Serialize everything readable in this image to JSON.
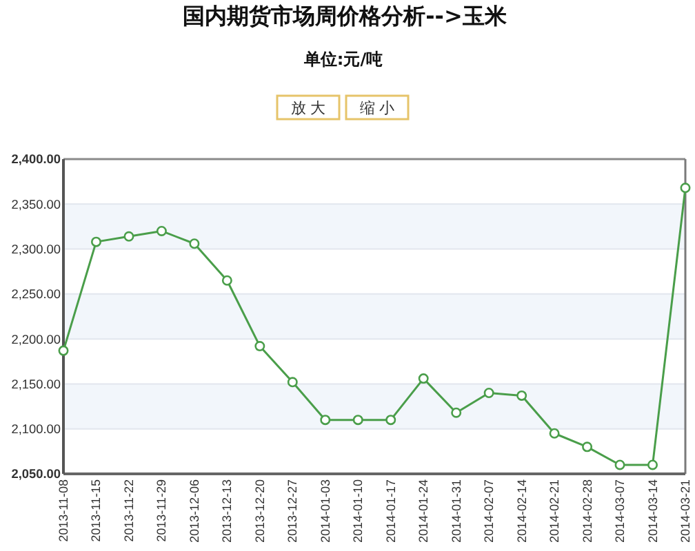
{
  "chart_data": {
    "type": "line",
    "title": "国内期货市场周价格分析-->玉米",
    "subtitle": "单位:元/吨",
    "annotations": [
      "放 大",
      "缩 小"
    ],
    "categories": [
      "2013-11-08",
      "2013-11-15",
      "2013-11-22",
      "2013-11-29",
      "2013-12-06",
      "2013-12-13",
      "2013-12-20",
      "2013-12-27",
      "2014-01-03",
      "2014-01-10",
      "2014-01-17",
      "2014-01-24",
      "2014-01-31",
      "2014-02-07",
      "2014-02-14",
      "2014-02-21",
      "2014-02-28",
      "2014-03-07",
      "2014-03-14",
      "2014-03-21"
    ],
    "values": [
      2187,
      2308,
      2314,
      2320,
      2306,
      2265,
      2192,
      2152,
      2110,
      2110,
      2110,
      2156,
      2118,
      2140,
      2137,
      2095,
      2080,
      2060,
      2060,
      2368
    ],
    "color": "#4a9e4a",
    "ylim": [
      2050,
      2400
    ],
    "yticks": [
      {
        "value": 2050,
        "label": "2,050.00"
      },
      {
        "value": 2100,
        "label": "2,100.00"
      },
      {
        "value": 2150,
        "label": "2,150.00"
      },
      {
        "value": 2200,
        "label": "2,200.00"
      },
      {
        "value": 2250,
        "label": "2,250.00"
      },
      {
        "value": 2300,
        "label": "2,300.00"
      },
      {
        "value": 2350,
        "label": "2,350.00"
      },
      {
        "value": 2400,
        "label": "2,400.00"
      }
    ],
    "grid": "y",
    "marker": "circle",
    "line_style": "solid"
  }
}
